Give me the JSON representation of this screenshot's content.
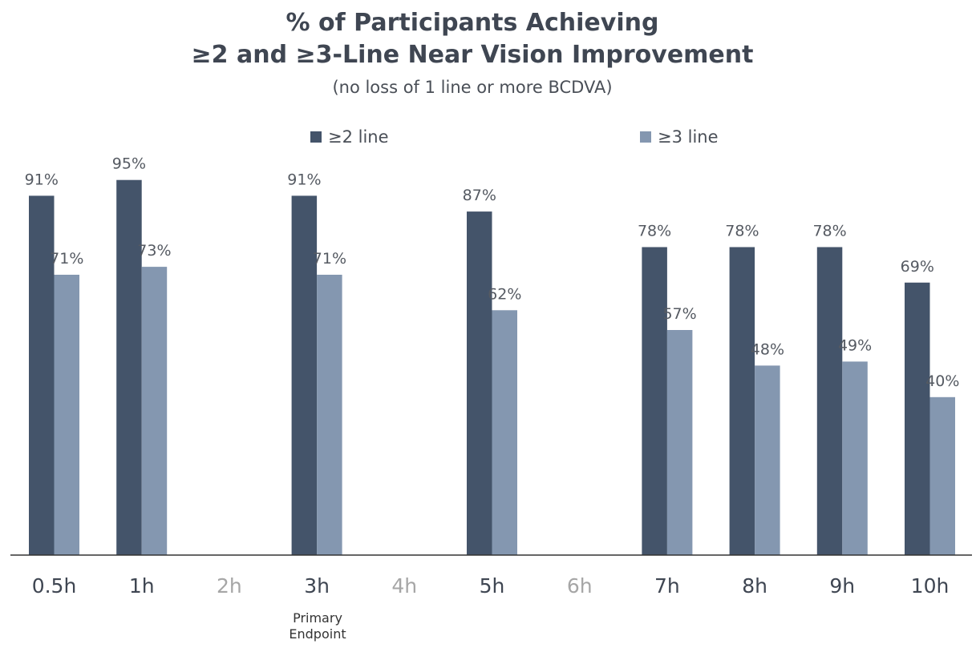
{
  "chart_data": {
    "type": "bar",
    "title": "% of Participants Achieving",
    "title_line2": "≥2 and ≥3-Line Near Vision Improvement",
    "subtitle": "(no loss of 1 line or more BCDVA)",
    "categories": [
      "0.5h",
      "1h",
      "2h",
      "3h",
      "4h",
      "5h",
      "6h",
      "7h",
      "8h",
      "9h",
      "10h"
    ],
    "muted_categories": [
      "2h",
      "4h",
      "6h"
    ],
    "series": [
      {
        "name": "≥2 line",
        "color": "#44546a",
        "values": [
          91,
          95,
          null,
          91,
          null,
          87,
          null,
          78,
          78,
          78,
          69
        ],
        "labels": [
          "91%",
          "95%",
          "",
          "91%",
          "",
          "87%",
          "",
          "78%",
          "78%",
          "78%",
          "69%"
        ]
      },
      {
        "name": "≥3 line",
        "color": "#8497b0",
        "values": [
          71,
          73,
          null,
          71,
          null,
          62,
          null,
          57,
          48,
          49,
          40
        ],
        "labels": [
          "71%",
          "73%",
          "",
          "71%",
          "",
          "62%",
          "",
          "57%",
          "48%",
          "49%",
          "40%"
        ]
      }
    ],
    "annotation": {
      "category": "3h",
      "text_line1": "Primary",
      "text_line2": "Endpoint"
    },
    "ylim": [
      0,
      100
    ],
    "grid": false,
    "legend": "top-center",
    "tick_color": "#3f4652",
    "muted_tick_color": "#a6a6a6"
  }
}
